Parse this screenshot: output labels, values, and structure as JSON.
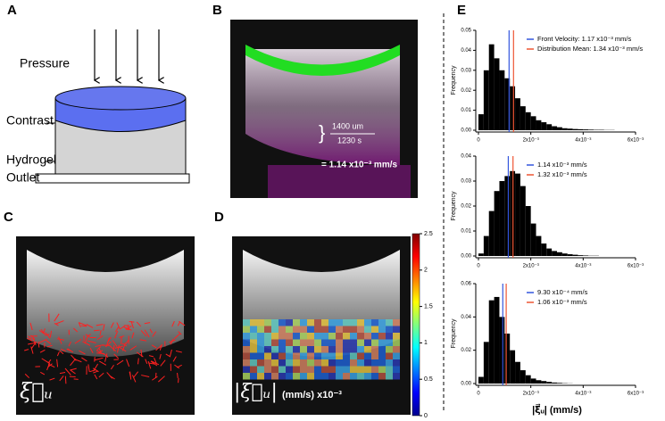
{
  "panels": {
    "A": {
      "letter": "A",
      "pressure": "Pressure",
      "contrast": "Contrast",
      "hydrogel": "Hydrogel",
      "outlet": "Outlet"
    },
    "B": {
      "letter": "B",
      "numerator": "1400 um",
      "denominator": "1230 s",
      "result": "= 1.14 x10⁻³ mm/s"
    },
    "C": {
      "letter": "C",
      "symbol": "ξ⃗ᵤ"
    },
    "D": {
      "letter": "D",
      "symbol": "|ξ⃗ᵤ|",
      "unit": "(mm/s) x10⁻³",
      "colorbar_ticks": [
        0,
        0.5,
        1,
        1.5,
        2,
        2.5
      ]
    },
    "E": {
      "letter": "E"
    }
  },
  "chart_data": [
    {
      "type": "histogram",
      "color": "#000000",
      "ylabel": "Frequency",
      "bins": [
        0,
        0.0002,
        0.0004,
        0.0006,
        0.0008,
        0.001,
        0.0012,
        0.0014,
        0.0016,
        0.0018,
        0.002,
        0.0022,
        0.0024,
        0.0026,
        0.0028,
        0.003,
        0.0032,
        0.0034,
        0.0036,
        0.0038,
        0.004,
        0.0042,
        0.0044,
        0.0046,
        0.0048,
        0.005,
        0.0052,
        0.0054,
        0.0056,
        0.0058,
        0.006
      ],
      "values": [
        0.008,
        0.03,
        0.043,
        0.036,
        0.03,
        0.026,
        0.022,
        0.016,
        0.012,
        0.009,
        0.007,
        0.005,
        0.004,
        0.003,
        0.002,
        0.0015,
        0.001,
        0.0008,
        0.0006,
        0.0005,
        0.0004,
        0.0003,
        0.0002,
        0.0002,
        0.0001,
        0.0001,
        0,
        0,
        0,
        0
      ],
      "lines": [
        {
          "name": "Front Velocity: 1.17 x10⁻³ mm/s",
          "color": "#3355dd",
          "value": 0.00117
        },
        {
          "name": "Distribution Mean: 1.34 x10⁻³ mm/s",
          "color": "#ee5533",
          "value": 0.00134
        }
      ],
      "xlim": [
        0,
        0.006
      ],
      "ylim": [
        0,
        0.05
      ],
      "xticks": [
        0,
        {
          "value": 0.002,
          "label": "2x10⁻³"
        },
        {
          "value": 0.004,
          "label": "4x10⁻³"
        },
        {
          "value": 0.006,
          "label": "6x10⁻³"
        }
      ],
      "yticks": [
        {
          "value": 0,
          "label": "0.00"
        },
        {
          "value": 0.01,
          "label": "0.01"
        },
        {
          "value": 0.02,
          "label": "0.02"
        },
        {
          "value": 0.03,
          "label": "0.03"
        },
        {
          "value": 0.04,
          "label": "0.04"
        },
        {
          "value": 0.05,
          "label": "0.05"
        }
      ]
    },
    {
      "type": "histogram",
      "color": "#000000",
      "ylabel": "Frequency",
      "bins": [
        0,
        0.0002,
        0.0004,
        0.0006,
        0.0008,
        0.001,
        0.0012,
        0.0014,
        0.0016,
        0.0018,
        0.002,
        0.0022,
        0.0024,
        0.0026,
        0.0028,
        0.003,
        0.0032,
        0.0034,
        0.0036,
        0.0038,
        0.004,
        0.0042,
        0.0044,
        0.0046,
        0.0048,
        0.005,
        0.0052,
        0.0054,
        0.0056,
        0.0058,
        0.006
      ],
      "values": [
        0.001,
        0.008,
        0.018,
        0.026,
        0.03,
        0.032,
        0.034,
        0.033,
        0.028,
        0.02,
        0.013,
        0.008,
        0.005,
        0.003,
        0.002,
        0.0015,
        0.001,
        0.0007,
        0.0005,
        0.0003,
        0.0002,
        0.0001,
        0.0001,
        0,
        0,
        0,
        0,
        0,
        0,
        0
      ],
      "lines": [
        {
          "name": "1.14 x10⁻³ mm/s",
          "color": "#3355dd",
          "value": 0.00114
        },
        {
          "name": "1.32 x10⁻³ mm/s",
          "color": "#ee5533",
          "value": 0.00132
        }
      ],
      "xlim": [
        0,
        0.006
      ],
      "ylim": [
        0,
        0.04
      ],
      "xticks": [
        0,
        {
          "value": 0.002,
          "label": "2x10⁻³"
        },
        {
          "value": 0.004,
          "label": "4x10⁻³"
        },
        {
          "value": 0.006,
          "label": "6x10⁻³"
        }
      ],
      "yticks": [
        {
          "value": 0,
          "label": "0.00"
        },
        {
          "value": 0.01,
          "label": "0.01"
        },
        {
          "value": 0.02,
          "label": "0.02"
        },
        {
          "value": 0.03,
          "label": "0.03"
        },
        {
          "value": 0.04,
          "label": "0.04"
        }
      ]
    },
    {
      "type": "histogram",
      "color": "#000000",
      "ylabel": "Frequency",
      "xlabel": "|ξ⃗ᵤ| (mm/s)",
      "bins": [
        0,
        0.0002,
        0.0004,
        0.0006,
        0.0008,
        0.001,
        0.0012,
        0.0014,
        0.0016,
        0.0018,
        0.002,
        0.0022,
        0.0024,
        0.0026,
        0.0028,
        0.003,
        0.0032,
        0.0034,
        0.0036,
        0.0038,
        0.004,
        0.0042,
        0.0044,
        0.0046,
        0.0048,
        0.005,
        0.0052,
        0.0054,
        0.0056,
        0.0058,
        0.006
      ],
      "values": [
        0.004,
        0.025,
        0.05,
        0.052,
        0.04,
        0.03,
        0.02,
        0.013,
        0.008,
        0.005,
        0.003,
        0.002,
        0.0015,
        0.001,
        0.0006,
        0.0004,
        0.0002,
        0.0001,
        0,
        0,
        0,
        0,
        0,
        0,
        0,
        0,
        0,
        0,
        0,
        0
      ],
      "lines": [
        {
          "name": "9.30 x10⁻⁴ mm/s",
          "color": "#3355dd",
          "value": 0.00093
        },
        {
          "name": "1.06 x10⁻³ mm/s",
          "color": "#ee5533",
          "value": 0.00106
        }
      ],
      "xlim": [
        0,
        0.006
      ],
      "ylim": [
        0,
        0.06
      ],
      "xticks": [
        0,
        {
          "value": 0.002,
          "label": "2x10⁻³"
        },
        {
          "value": 0.004,
          "label": "4x10⁻³"
        },
        {
          "value": 0.006,
          "label": "6x10⁻³"
        }
      ],
      "yticks": [
        {
          "value": 0,
          "label": "0.00"
        },
        {
          "value": 0.02,
          "label": "0.02"
        },
        {
          "value": 0.04,
          "label": "0.04"
        },
        {
          "value": 0.06,
          "label": "0.06"
        }
      ]
    }
  ]
}
